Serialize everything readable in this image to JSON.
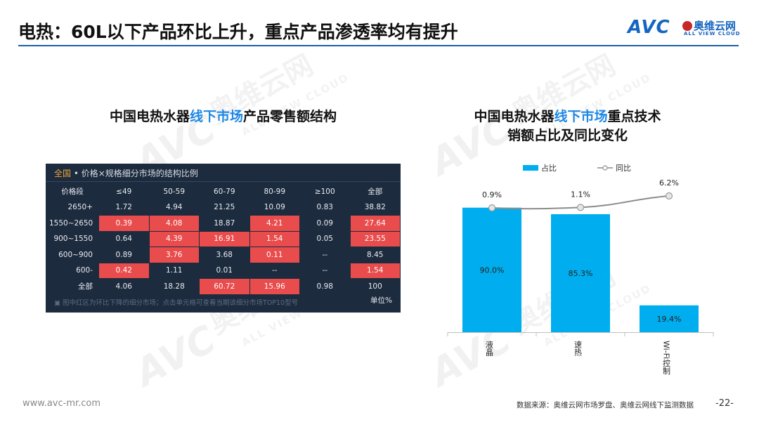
{
  "page": {
    "title": "电热：60L以下产品环比上升，重点产品渗透率均有提升",
    "logo": {
      "brand": "AVC",
      "cn_name": "奥维云网",
      "en_name": "ALL VIEW CLOUD"
    },
    "watermark": {
      "brand": "AVC",
      "cn_name": "奥维云网",
      "en_name": "ALL VIEW CLOUD"
    }
  },
  "left": {
    "title_a": "中国电热水器",
    "title_hl": "线下市场",
    "title_b": "产品零售额结构",
    "panel": {
      "header_hl": "全国",
      "header_rest": " • 价格×规格细分市场的结构比例",
      "footnote": "图中红区为环比下降的细分市场；点击单元格可查看当期该细分市场TOP10型号",
      "unit": "单位%"
    }
  },
  "chart_data": [
    {
      "type": "table",
      "title": "中国电热水器线下市场产品零售额结构",
      "columns": [
        "价格段",
        "≤49",
        "50-59",
        "60-79",
        "80-99",
        "≥100",
        "全部"
      ],
      "rows": [
        {
          "label": "2650+",
          "values": [
            "1.72",
            "4.94",
            "21.25",
            "10.09",
            "0.83",
            "38.82"
          ],
          "red": [
            false,
            false,
            false,
            false,
            false,
            false
          ]
        },
        {
          "label": "1550~2650",
          "values": [
            "0.39",
            "4.08",
            "18.87",
            "4.21",
            "0.09",
            "27.64"
          ],
          "red": [
            true,
            true,
            false,
            true,
            false,
            true
          ]
        },
        {
          "label": "900~1550",
          "values": [
            "0.64",
            "4.39",
            "16.91",
            "1.54",
            "0.05",
            "23.55"
          ],
          "red": [
            false,
            true,
            true,
            true,
            false,
            true
          ]
        },
        {
          "label": "600~900",
          "values": [
            "0.89",
            "3.76",
            "3.68",
            "0.11",
            "--",
            "8.45"
          ],
          "red": [
            false,
            true,
            false,
            true,
            false,
            false
          ]
        },
        {
          "label": "600-",
          "values": [
            "0.42",
            "1.11",
            "0.01",
            "--",
            "--",
            "1.54"
          ],
          "red": [
            true,
            false,
            false,
            false,
            false,
            true
          ]
        },
        {
          "label": "全部",
          "values": [
            "4.06",
            "18.28",
            "60.72",
            "15.96",
            "0.98",
            "100"
          ],
          "red": [
            false,
            false,
            true,
            true,
            false,
            false
          ]
        }
      ],
      "unit": "单位%"
    },
    {
      "type": "bar",
      "title": "中国电热水器线下市场重点技术销额占比及同比变化",
      "categories": [
        "液晶",
        "速热",
        "Wi-Fi控制"
      ],
      "series": [
        {
          "name": "占比",
          "kind": "bar",
          "color": "#00aeef",
          "values": [
            90.0,
            85.3,
            19.4
          ],
          "labels": [
            "90.0%",
            "85.3%",
            "19.4%"
          ]
        },
        {
          "name": "同比",
          "kind": "line",
          "color": "#a6a6a6",
          "values": [
            0.9,
            1.1,
            6.2
          ],
          "labels": [
            "0.9%",
            "1.1%",
            "6.2%"
          ]
        }
      ],
      "ylim": [
        0,
        100
      ],
      "legend": "top"
    }
  ],
  "right": {
    "title_a": "中国电热水器",
    "title_hl": "线下市场",
    "title_b": "重点技术",
    "title_line2": "销额占比及同比变化"
  },
  "footer": {
    "url": "www.avc-mr.com",
    "source": "数据来源：奥维云网市场罗盘、奥维云网线下监测数据",
    "page_number": "-22-"
  }
}
